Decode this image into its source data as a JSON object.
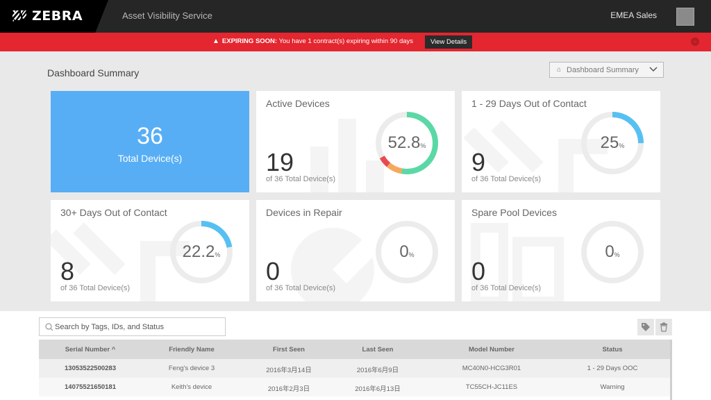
{
  "header": {
    "logo_text": "ZEBRA",
    "app_title": "Asset Visibility Service",
    "account_name": "EMEA Sales"
  },
  "alert": {
    "label": "EXPIRING SOON:",
    "message": "You have 1 contract(s) expiring within 90 days",
    "button_label": "View Details"
  },
  "summary": {
    "title": "Dashboard Summary",
    "selector_value": "Dashboard Summary"
  },
  "total": {
    "count": "36",
    "label": "Total Device(s)"
  },
  "cards": [
    {
      "title": "Active Devices",
      "count": "19",
      "sub": "of 36 Total Device(s)",
      "pct": "52.8",
      "pct_symbol": "%",
      "segments": [
        {
          "fraction": 0.528,
          "color": "#5ad8a6"
        },
        {
          "fraction": 0.083,
          "color": "#f5a95d"
        },
        {
          "fraction": 0.056,
          "color": "#e84a4f"
        }
      ]
    },
    {
      "title": "1 - 29 Days Out of Contact",
      "count": "9",
      "sub": "of 36 Total Device(s)",
      "pct": "25",
      "pct_symbol": "%",
      "segments": [
        {
          "fraction": 0.25,
          "color": "#57c0f3"
        }
      ]
    },
    {
      "title": "30+ Days Out of Contact",
      "count": "8",
      "sub": "of 36 Total Device(s)",
      "pct": "22.2",
      "pct_symbol": "%",
      "segments": [
        {
          "fraction": 0.222,
          "color": "#57c0f3"
        }
      ]
    },
    {
      "title": "Devices in Repair",
      "count": "0",
      "sub": "of 36 Total Device(s)",
      "pct": "0",
      "pct_symbol": "%",
      "segments": []
    },
    {
      "title": "Spare Pool Devices",
      "count": "0",
      "sub": "of 36 Total Device(s)",
      "pct": "0",
      "pct_symbol": "%",
      "segments": []
    }
  ],
  "search": {
    "placeholder": "Search by Tags, IDs, and Status"
  },
  "table": {
    "columns": [
      "Serial Number",
      "Friendly Name",
      "First Seen",
      "Last Seen",
      "Model Number",
      "Status"
    ],
    "sort_indicator": "^",
    "rows": [
      {
        "serial": "13053522500283",
        "friendly": "Feng's device 3",
        "first_seen": "2016年3月14日",
        "last_seen": "2016年6月9日",
        "model": "MC40N0-HCG3R01",
        "status": "1 - 29 Days OOC",
        "status_color": "#cfcfcf"
      },
      {
        "serial": "14075521650181",
        "friendly": "Keith's device",
        "first_seen": "2016年2月3日",
        "last_seen": "2016年6月13日",
        "model": "TC55CH-JC11ES",
        "status": "Warning",
        "status_color": "#f5a95d"
      }
    ]
  },
  "colors": {
    "brand_red": "#e3262f",
    "accent_blue": "#57aef5",
    "active_green": "#5ad8a6"
  }
}
